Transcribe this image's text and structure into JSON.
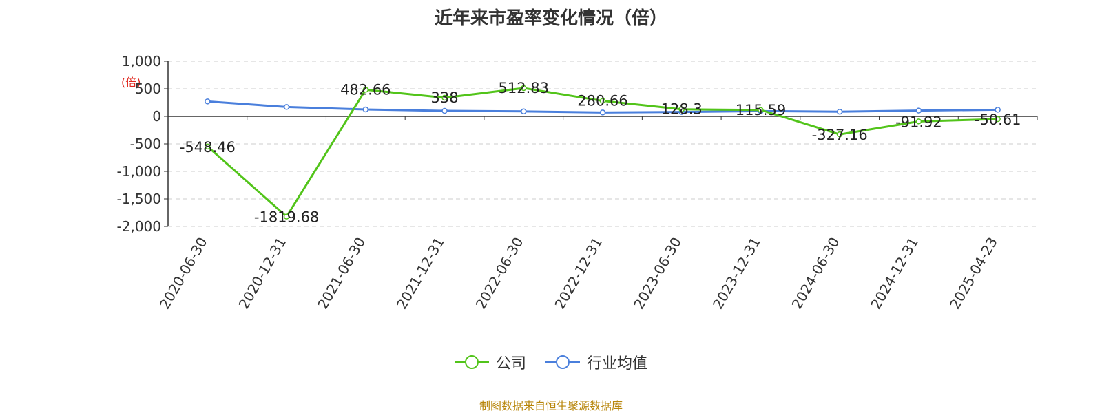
{
  "chart_data": {
    "type": "line",
    "title": "近年来市盈率变化情况（倍）",
    "unit_label": "(倍)",
    "categories": [
      "2020-06-30",
      "2020-12-31",
      "2021-06-30",
      "2021-12-31",
      "2022-06-30",
      "2022-12-31",
      "2023-06-30",
      "2023-12-31",
      "2024-06-30",
      "2024-12-31",
      "2025-04-23"
    ],
    "ylim": [
      -2000,
      1000
    ],
    "yticks": [
      1000,
      500,
      0,
      -500,
      -1000,
      -1500,
      -2000
    ],
    "ytick_labels": [
      "1,000",
      "500",
      "0",
      "-500",
      "-1,000",
      "-1,500",
      "-2,000"
    ],
    "grid": true,
    "legend_position": "bottom",
    "series": [
      {
        "name": "公司",
        "color": "#52c41a",
        "values": [
          -548.46,
          -1819.68,
          482.66,
          338,
          512.83,
          280.66,
          128.3,
          115.59,
          -327.16,
          -91.92,
          -50.61
        ],
        "labels": [
          "-548.46",
          "-1819.68",
          "482.66",
          "338",
          "512.83",
          "280.66",
          "128.3",
          "115.59",
          "-327.16",
          "-91.92",
          "-50.61"
        ]
      },
      {
        "name": "行业均值",
        "color": "#4a7fdc",
        "values": [
          270,
          170,
          125,
          100,
          90,
          70,
          80,
          95,
          85,
          105,
          120
        ]
      }
    ]
  },
  "source_note": "制图数据来自恒生聚源数据库"
}
